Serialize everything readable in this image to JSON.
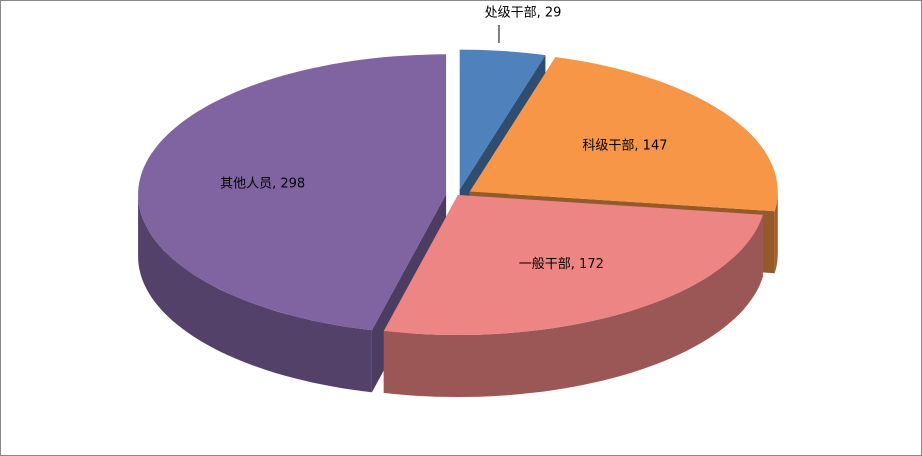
{
  "chart_data": {
    "type": "pie",
    "categories": [
      "处级干部",
      "科级干部",
      "一般干部",
      "其他人员"
    ],
    "values": [
      29,
      147,
      172,
      298
    ],
    "value_labels": [
      "处级干部, 29",
      "科级干部, 147",
      "一般干部, 172",
      "其他人员, 298"
    ],
    "colors": [
      "#4f81bd",
      "#f79646",
      "#ee8585",
      "#8064a2"
    ]
  }
}
